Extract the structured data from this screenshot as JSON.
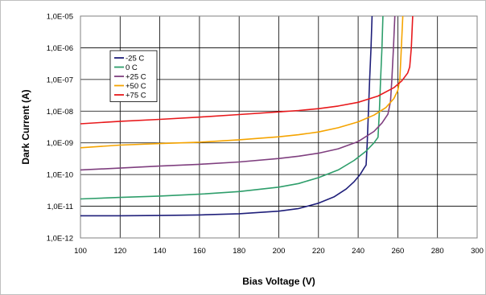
{
  "chart_data": {
    "type": "line",
    "title": "",
    "xlabel": "Bias Voltage (V)",
    "ylabel": "Dark Current (A)",
    "xlim": [
      100,
      300
    ],
    "ylim": [
      1e-12,
      1e-05
    ],
    "y_scale": "log",
    "x_ticks": [
      100,
      120,
      140,
      160,
      180,
      200,
      220,
      240,
      260,
      280,
      300
    ],
    "x_tick_labels": [
      "100",
      "120",
      "140",
      "160",
      "180",
      "200",
      "220",
      "240",
      "260",
      "280",
      "300"
    ],
    "y_ticks": [
      1e-12,
      1e-11,
      1e-10,
      1e-09,
      1e-08,
      1e-07,
      1e-06,
      1e-05
    ],
    "y_tick_labels": [
      "1,0E-12",
      "1,0E-11",
      "1,0E-10",
      "1,0E-09",
      "1,0E-08",
      "1,0E-07",
      "1,0E-06",
      "1,0E-05"
    ],
    "grid": true,
    "legend_position": "top-left",
    "series": [
      {
        "name": "-25 C",
        "color": "#1f1f7a",
        "points": [
          [
            100,
            5e-12
          ],
          [
            120,
            5e-12
          ],
          [
            140,
            5.1e-12
          ],
          [
            160,
            5.3e-12
          ],
          [
            180,
            5.8e-12
          ],
          [
            200,
            7e-12
          ],
          [
            210,
            8.5e-12
          ],
          [
            220,
            1.25e-11
          ],
          [
            228,
            2e-11
          ],
          [
            234,
            3.5e-11
          ],
          [
            238,
            6e-11
          ],
          [
            241,
            1e-10
          ],
          [
            243,
            1.6e-10
          ],
          [
            244,
            2e-10
          ],
          [
            244.6,
            1e-09
          ],
          [
            245.2,
            1e-08
          ],
          [
            245.8,
            1e-07
          ],
          [
            246.5,
            1e-06
          ],
          [
            247,
            1e-05
          ]
        ]
      },
      {
        "name": "0 C",
        "color": "#2e9e6b",
        "points": [
          [
            100,
            1.7e-11
          ],
          [
            120,
            1.9e-11
          ],
          [
            140,
            2.1e-11
          ],
          [
            160,
            2.4e-11
          ],
          [
            180,
            2.9e-11
          ],
          [
            200,
            4e-11
          ],
          [
            210,
            5.2e-11
          ],
          [
            220,
            8e-11
          ],
          [
            230,
            1.4e-10
          ],
          [
            238,
            2.8e-10
          ],
          [
            244,
            5.5e-10
          ],
          [
            248,
            1e-09
          ],
          [
            250,
            1.5e-09
          ],
          [
            250.7,
            1e-08
          ],
          [
            251.3,
            1e-07
          ],
          [
            252,
            1e-06
          ],
          [
            252.5,
            1e-05
          ]
        ]
      },
      {
        "name": "+25 C",
        "color": "#7f3f7f",
        "points": [
          [
            100,
            1.4e-10
          ],
          [
            120,
            1.6e-10
          ],
          [
            140,
            1.85e-10
          ],
          [
            160,
            2.1e-10
          ],
          [
            180,
            2.5e-10
          ],
          [
            200,
            3.2e-10
          ],
          [
            210,
            3.8e-10
          ],
          [
            220,
            4.7e-10
          ],
          [
            230,
            6.5e-10
          ],
          [
            240,
            1.1e-09
          ],
          [
            248,
            2.3e-09
          ],
          [
            252,
            4.2e-09
          ],
          [
            255,
            8e-09
          ],
          [
            256.3,
            2e-08
          ],
          [
            257,
            1e-07
          ],
          [
            257.8,
            1e-06
          ],
          [
            258.5,
            1e-05
          ]
        ]
      },
      {
        "name": "+50 C",
        "color": "#f5a400",
        "points": [
          [
            100,
            7e-10
          ],
          [
            120,
            8.5e-10
          ],
          [
            140,
            9.5e-10
          ],
          [
            160,
            1.05e-09
          ],
          [
            180,
            1.25e-09
          ],
          [
            200,
            1.55e-09
          ],
          [
            210,
            1.8e-09
          ],
          [
            220,
            2.2e-09
          ],
          [
            230,
            3e-09
          ],
          [
            240,
            4.6e-09
          ],
          [
            248,
            7.5e-09
          ],
          [
            254,
            1.3e-08
          ],
          [
            258,
            2.5e-08
          ],
          [
            260,
            4.5e-08
          ],
          [
            261,
            1e-07
          ],
          [
            261.8,
            1e-06
          ],
          [
            262.5,
            1e-05
          ]
        ]
      },
      {
        "name": "+75 C",
        "color": "#e8191c",
        "points": [
          [
            100,
            4e-09
          ],
          [
            120,
            4.8e-09
          ],
          [
            140,
            5.5e-09
          ],
          [
            160,
            6.5e-09
          ],
          [
            180,
            7.8e-09
          ],
          [
            200,
            9.5e-09
          ],
          [
            210,
            1.05e-08
          ],
          [
            220,
            1.2e-08
          ],
          [
            230,
            1.45e-08
          ],
          [
            240,
            1.9e-08
          ],
          [
            250,
            3e-08
          ],
          [
            258,
            5.5e-08
          ],
          [
            262,
            9e-08
          ],
          [
            265,
            1.6e-07
          ],
          [
            266,
            2.5e-07
          ],
          [
            266.8,
            1e-06
          ],
          [
            267.5,
            1e-05
          ]
        ]
      }
    ]
  }
}
